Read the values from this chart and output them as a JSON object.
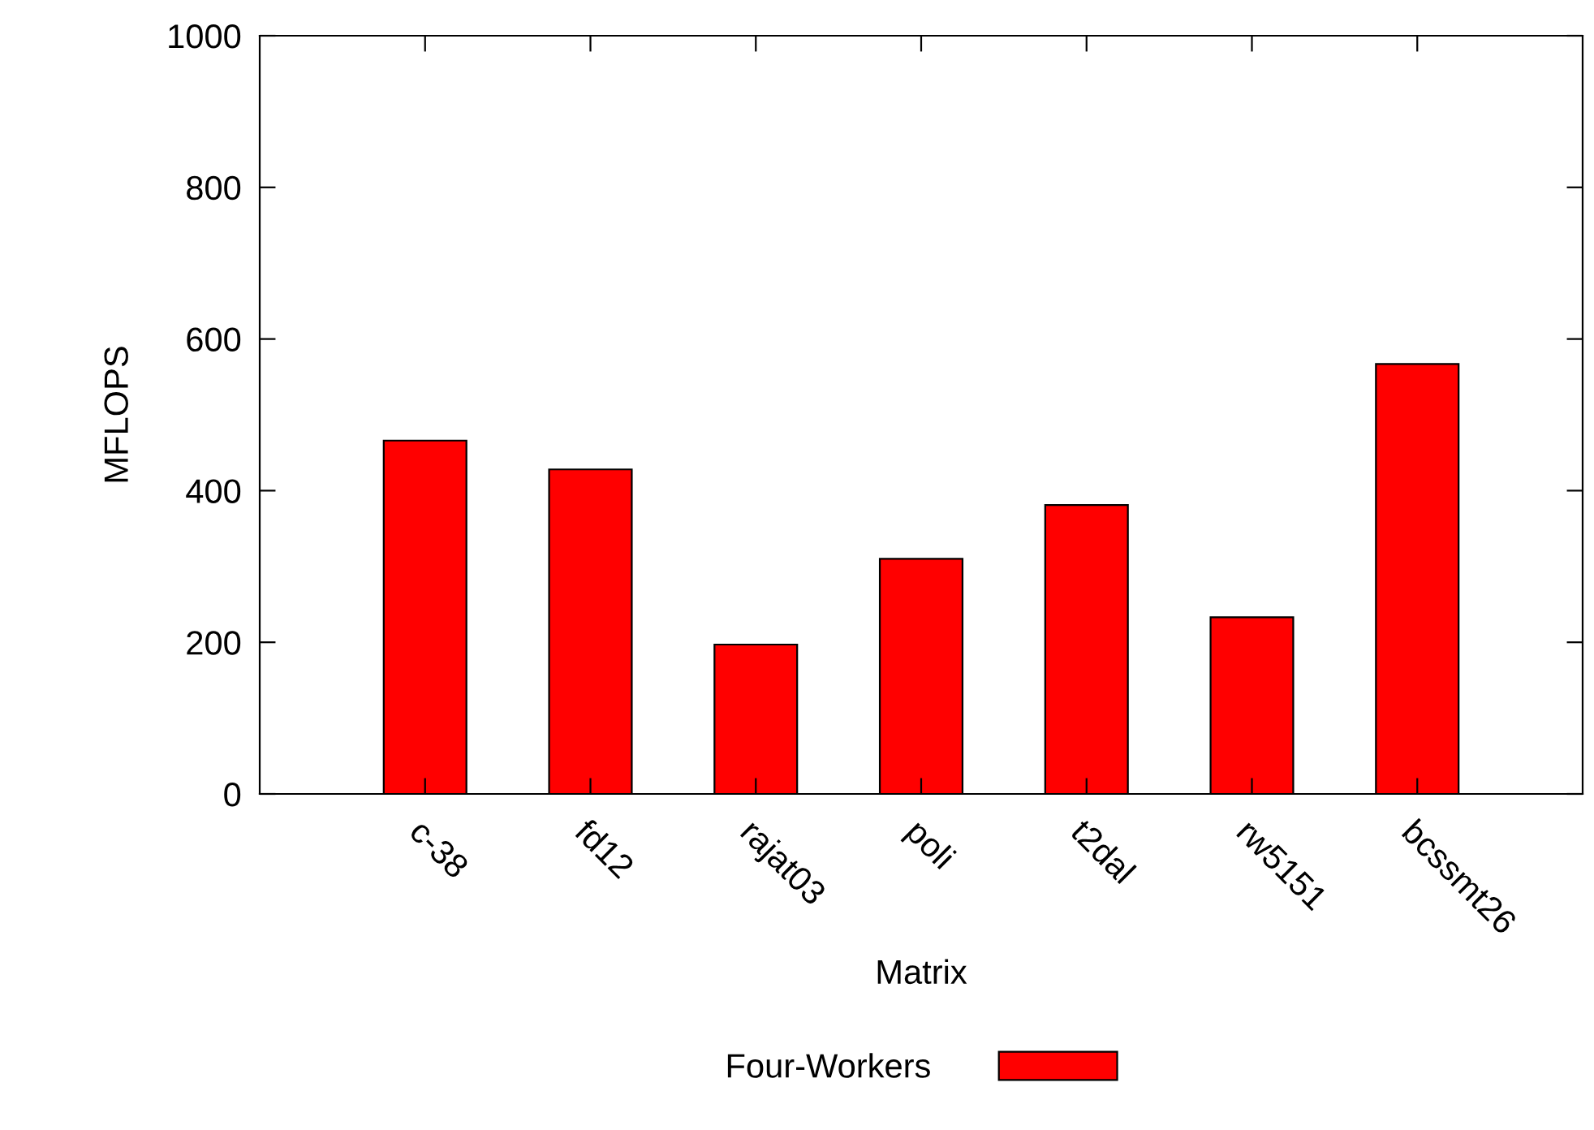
{
  "chart_data": {
    "type": "bar",
    "xlabel": "Matrix",
    "ylabel": "MFLOPS",
    "categories": [
      "c-38",
      "fd12",
      "rajat03",
      "poli",
      "t2dal",
      "rw5151",
      "bcssmt26"
    ],
    "series": [
      {
        "name": "Four-Workers",
        "color": "#ff0000",
        "values": [
          466,
          428,
          197,
          310,
          381,
          233,
          567
        ]
      }
    ],
    "ylim": [
      0,
      1000
    ],
    "yticks": [
      0,
      200,
      400,
      600,
      800,
      1000
    ],
    "grid": false,
    "legend": "bottom"
  }
}
